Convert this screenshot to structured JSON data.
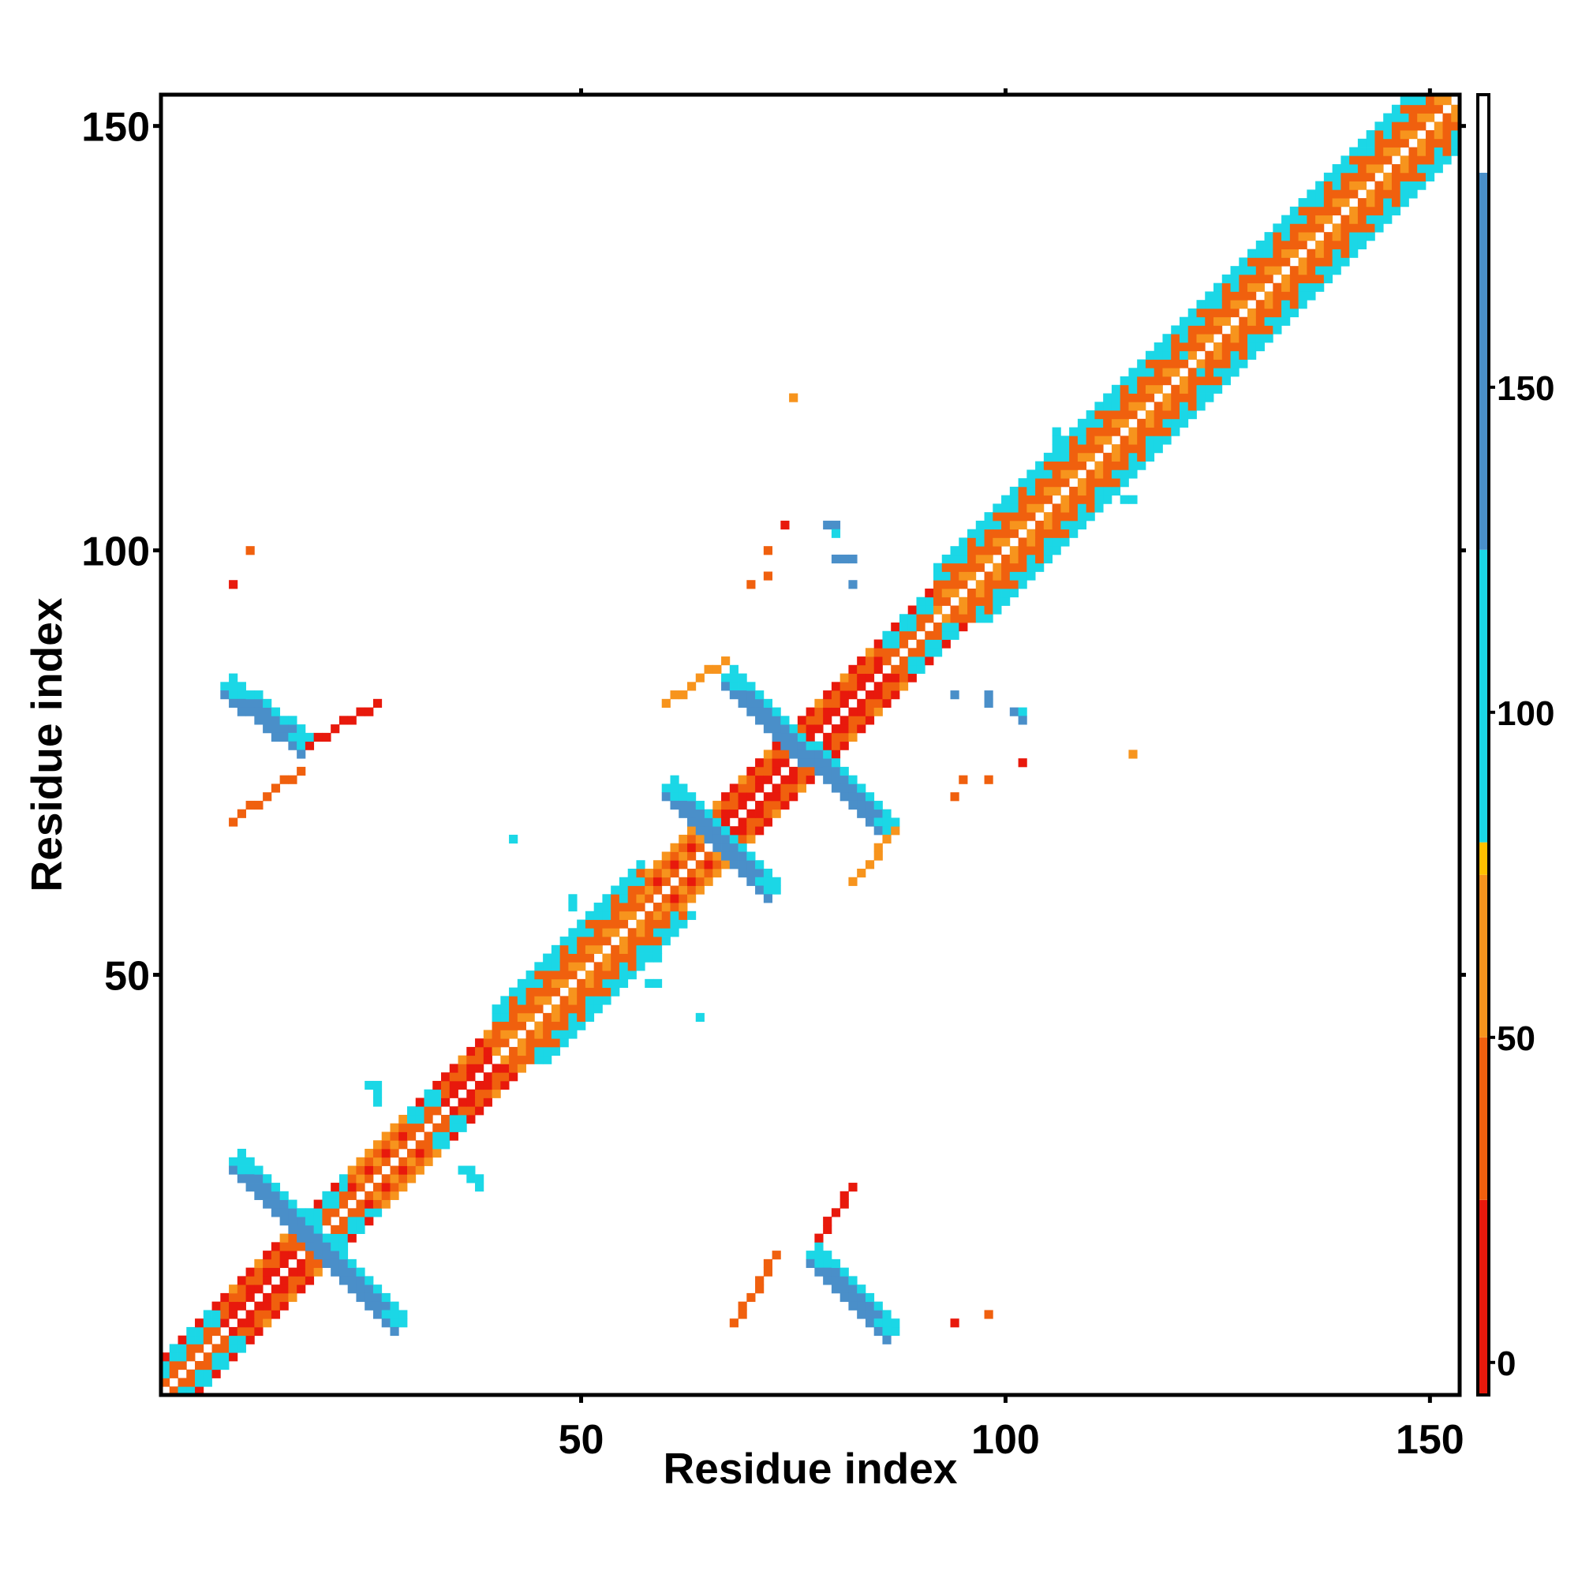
{
  "chart_data": {
    "type": "heatmap",
    "title": "",
    "xlabel": "Residue index",
    "ylabel": "Residue index",
    "xlim": [
      0.5,
      153.5
    ],
    "ylim": [
      0.5,
      153.5
    ],
    "x_ticks": [
      50,
      100,
      150
    ],
    "y_ticks": [
      50,
      100,
      150
    ],
    "grid": false,
    "colorbar": {
      "ticks": [
        0,
        50,
        100,
        150
      ],
      "range": [
        -5,
        195
      ],
      "bands": [
        {
          "from": -5,
          "to": 25,
          "color": "#e8190c"
        },
        {
          "from": 25,
          "to": 50,
          "color": "#f0600e"
        },
        {
          "from": 50,
          "to": 75,
          "color": "#f7941d"
        },
        {
          "from": 75,
          "to": 80,
          "color": "#ffc000"
        },
        {
          "from": 80,
          "to": 125,
          "color": "#1bd7e6"
        },
        {
          "from": 125,
          "to": 183,
          "color": "#4a8fc9"
        },
        {
          "from": 183,
          "to": 195,
          "color": "#ffffff"
        }
      ]
    },
    "diagonal_segments": [
      {
        "start": 1,
        "end": 7,
        "pattern": "mixed"
      },
      {
        "start": 8,
        "end": 16,
        "pattern": "red"
      },
      {
        "start": 17,
        "end": 22,
        "pattern": "mixed"
      },
      {
        "start": 23,
        "end": 29,
        "pattern": "orange"
      },
      {
        "start": 30,
        "end": 33,
        "pattern": "mixed"
      },
      {
        "start": 34,
        "end": 39,
        "pattern": "red"
      },
      {
        "start": 40,
        "end": 57,
        "pattern": "beta"
      },
      {
        "start": 58,
        "end": 66,
        "pattern": "orange"
      },
      {
        "start": 67,
        "end": 76,
        "pattern": "red"
      },
      {
        "start": 77,
        "end": 85,
        "pattern": "red"
      },
      {
        "start": 86,
        "end": 91,
        "pattern": "mixed"
      },
      {
        "start": 92,
        "end": 153,
        "pattern": "beta"
      }
    ],
    "strands": [
      {
        "x0": 8,
        "y0": 84,
        "x1": 17,
        "y1": 77,
        "color": "#4a8fc9"
      },
      {
        "x0": 9,
        "y0": 28,
        "x1": 28,
        "y1": 9,
        "color": "#4a8fc9"
      },
      {
        "x0": 60,
        "y0": 72,
        "x1": 72,
        "y1": 60,
        "color": "#4a8fc9"
      },
      {
        "x0": 67,
        "y0": 85,
        "x1": 86,
        "y1": 67,
        "color": "#4a8fc9"
      },
      {
        "x0": 77,
        "y0": 17,
        "x1": 86,
        "y1": 8,
        "color": "#4a8fc9"
      }
    ],
    "arcs": [
      {
        "x0": 9,
        "y0": 68,
        "x1": 17,
        "y1": 74,
        "color": "#f0600e"
      },
      {
        "x0": 18,
        "y0": 77,
        "x1": 26,
        "y1": 82,
        "color": "#e8190c"
      },
      {
        "x0": 68,
        "y0": 9,
        "x1": 73,
        "y1": 17,
        "color": "#f0600e"
      },
      {
        "x0": 78,
        "y0": 19,
        "x1": 82,
        "y1": 25,
        "color": "#e8190c"
      },
      {
        "x0": 60,
        "y0": 82,
        "x1": 67,
        "y1": 87,
        "color": "#f7941d"
      },
      {
        "x0": 82,
        "y0": 61,
        "x1": 87,
        "y1": 67,
        "color": "#f7941d"
      }
    ],
    "scatter": [
      {
        "x": 11,
        "y": 100,
        "color": "#f0600e"
      },
      {
        "x": 9,
        "y": 96,
        "color": "#e8190c"
      },
      {
        "x": 75,
        "y": 118,
        "color": "#f7941d"
      },
      {
        "x": 74,
        "y": 103,
        "color": "#e8190c"
      },
      {
        "x": 72,
        "y": 100,
        "color": "#f0600e"
      },
      {
        "x": 72,
        "y": 97,
        "color": "#f0600e"
      },
      {
        "x": 70,
        "y": 96,
        "color": "#f0600e"
      },
      {
        "x": 79,
        "y": 103,
        "color": "#4a8fc9"
      },
      {
        "x": 80,
        "y": 103,
        "color": "#4a8fc9"
      },
      {
        "x": 80,
        "y": 102,
        "color": "#1bd7e6"
      },
      {
        "x": 80,
        "y": 99,
        "color": "#4a8fc9"
      },
      {
        "x": 81,
        "y": 99,
        "color": "#4a8fc9"
      },
      {
        "x": 82,
        "y": 99,
        "color": "#4a8fc9"
      },
      {
        "x": 82,
        "y": 96,
        "color": "#4a8fc9"
      },
      {
        "x": 94,
        "y": 83,
        "color": "#4a8fc9"
      },
      {
        "x": 98,
        "y": 83,
        "color": "#4a8fc9"
      },
      {
        "x": 98,
        "y": 82,
        "color": "#4a8fc9"
      },
      {
        "x": 101,
        "y": 81,
        "color": "#4a8fc9"
      },
      {
        "x": 102,
        "y": 81,
        "color": "#1bd7e6"
      },
      {
        "x": 102,
        "y": 80,
        "color": "#4a8fc9"
      },
      {
        "x": 102,
        "y": 75,
        "color": "#e8190c"
      },
      {
        "x": 115,
        "y": 76,
        "color": "#f7941d"
      },
      {
        "x": 95,
        "y": 73,
        "color": "#f0600e"
      },
      {
        "x": 98,
        "y": 73,
        "color": "#f0600e"
      },
      {
        "x": 94,
        "y": 71,
        "color": "#f0600e"
      },
      {
        "x": 42,
        "y": 66,
        "color": "#1bd7e6"
      },
      {
        "x": 64,
        "y": 45,
        "color": "#1bd7e6"
      },
      {
        "x": 25,
        "y": 37,
        "color": "#1bd7e6"
      },
      {
        "x": 26,
        "y": 37,
        "color": "#1bd7e6"
      },
      {
        "x": 26,
        "y": 36,
        "color": "#1bd7e6"
      },
      {
        "x": 26,
        "y": 35,
        "color": "#1bd7e6"
      },
      {
        "x": 36,
        "y": 27,
        "color": "#1bd7e6"
      },
      {
        "x": 37,
        "y": 27,
        "color": "#1bd7e6"
      },
      {
        "x": 37,
        "y": 26,
        "color": "#1bd7e6"
      },
      {
        "x": 38,
        "y": 26,
        "color": "#1bd7e6"
      },
      {
        "x": 38,
        "y": 25,
        "color": "#1bd7e6"
      },
      {
        "x": 49,
        "y": 59,
        "color": "#1bd7e6"
      },
      {
        "x": 49,
        "y": 58,
        "color": "#1bd7e6"
      },
      {
        "x": 52,
        "y": 58,
        "color": "#1bd7e6"
      },
      {
        "x": 58,
        "y": 52,
        "color": "#1bd7e6"
      },
      {
        "x": 59,
        "y": 52,
        "color": "#1bd7e6"
      },
      {
        "x": 58,
        "y": 49,
        "color": "#1bd7e6"
      },
      {
        "x": 59,
        "y": 49,
        "color": "#1bd7e6"
      },
      {
        "x": 106,
        "y": 114,
        "color": "#1bd7e6"
      },
      {
        "x": 106,
        "y": 113,
        "color": "#1bd7e6"
      },
      {
        "x": 114,
        "y": 106,
        "color": "#1bd7e6"
      },
      {
        "x": 115,
        "y": 106,
        "color": "#1bd7e6"
      },
      {
        "x": 121,
        "y": 123,
        "color": "#1bd7e6"
      },
      {
        "x": 123,
        "y": 121,
        "color": "#1bd7e6"
      },
      {
        "x": 94,
        "y": 9,
        "color": "#e8190c"
      },
      {
        "x": 98,
        "y": 10,
        "color": "#f0600e"
      }
    ]
  }
}
